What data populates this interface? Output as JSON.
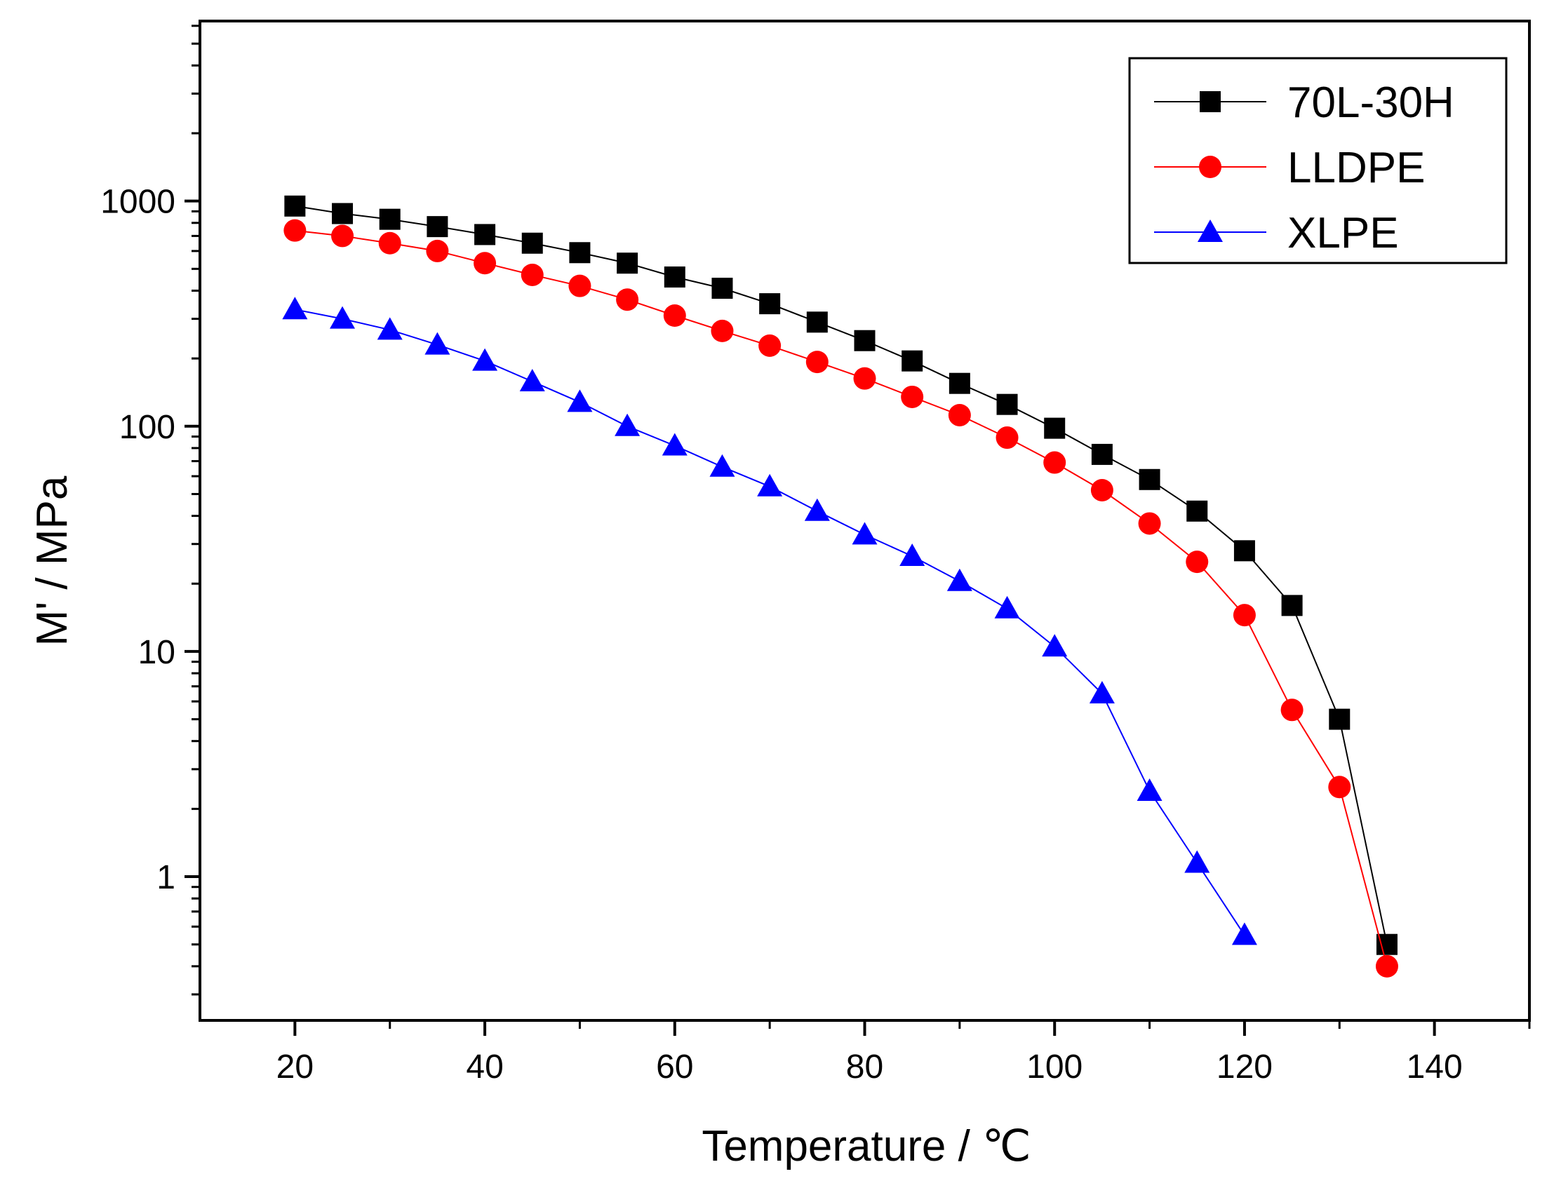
{
  "chart_data": {
    "type": "line",
    "title": "",
    "xlabel": "Temperature / ℃",
    "ylabel": "M' / MPa",
    "xlim": [
      10,
      150
    ],
    "ylim": [
      0.23,
      6300
    ],
    "yscale": "log",
    "xticks": [
      20,
      40,
      60,
      80,
      100,
      120,
      140
    ],
    "xtick_labels": [
      "20",
      "40",
      "60",
      "80",
      "100",
      "120",
      "140"
    ],
    "yticks": [
      1,
      10,
      100,
      1000
    ],
    "ytick_labels": [
      "1",
      "10",
      "100",
      "1000"
    ],
    "grid": false,
    "legend_position": "top-right",
    "series": [
      {
        "name": "70L-30H",
        "color": "#000000",
        "marker": "square",
        "x": [
          20,
          25,
          30,
          35,
          40,
          45,
          50,
          55,
          60,
          65,
          70,
          75,
          80,
          85,
          90,
          95,
          100,
          105,
          110,
          115,
          120,
          125,
          130,
          135
        ],
        "y": [
          950,
          880,
          830,
          770,
          710,
          650,
          590,
          530,
          460,
          410,
          350,
          290,
          240,
          195,
          155,
          125,
          98,
          75,
          58,
          42,
          28,
          16,
          5,
          0.5
        ]
      },
      {
        "name": "LLDPE",
        "color": "#ff0000",
        "marker": "circle",
        "x": [
          20,
          25,
          30,
          35,
          40,
          45,
          50,
          55,
          60,
          65,
          70,
          75,
          80,
          85,
          90,
          95,
          100,
          105,
          110,
          115,
          120,
          125,
          130,
          135
        ],
        "y": [
          740,
          700,
          650,
          600,
          530,
          470,
          420,
          365,
          310,
          265,
          228,
          193,
          163,
          135,
          112,
          89,
          69,
          52,
          37,
          25,
          14.5,
          5.5,
          2.5,
          0.4
        ]
      },
      {
        "name": "XLPE",
        "color": "#0000ff",
        "marker": "triangle",
        "x": [
          20,
          25,
          30,
          35,
          40,
          45,
          50,
          55,
          60,
          65,
          70,
          75,
          80,
          85,
          90,
          95,
          100,
          105,
          110,
          115,
          120
        ],
        "y": [
          330,
          300,
          268,
          230,
          195,
          158,
          128,
          100,
          82,
          66,
          54,
          42,
          33,
          26.5,
          20.5,
          15.5,
          10.5,
          6.5,
          2.4,
          1.15,
          0.55
        ]
      }
    ]
  }
}
